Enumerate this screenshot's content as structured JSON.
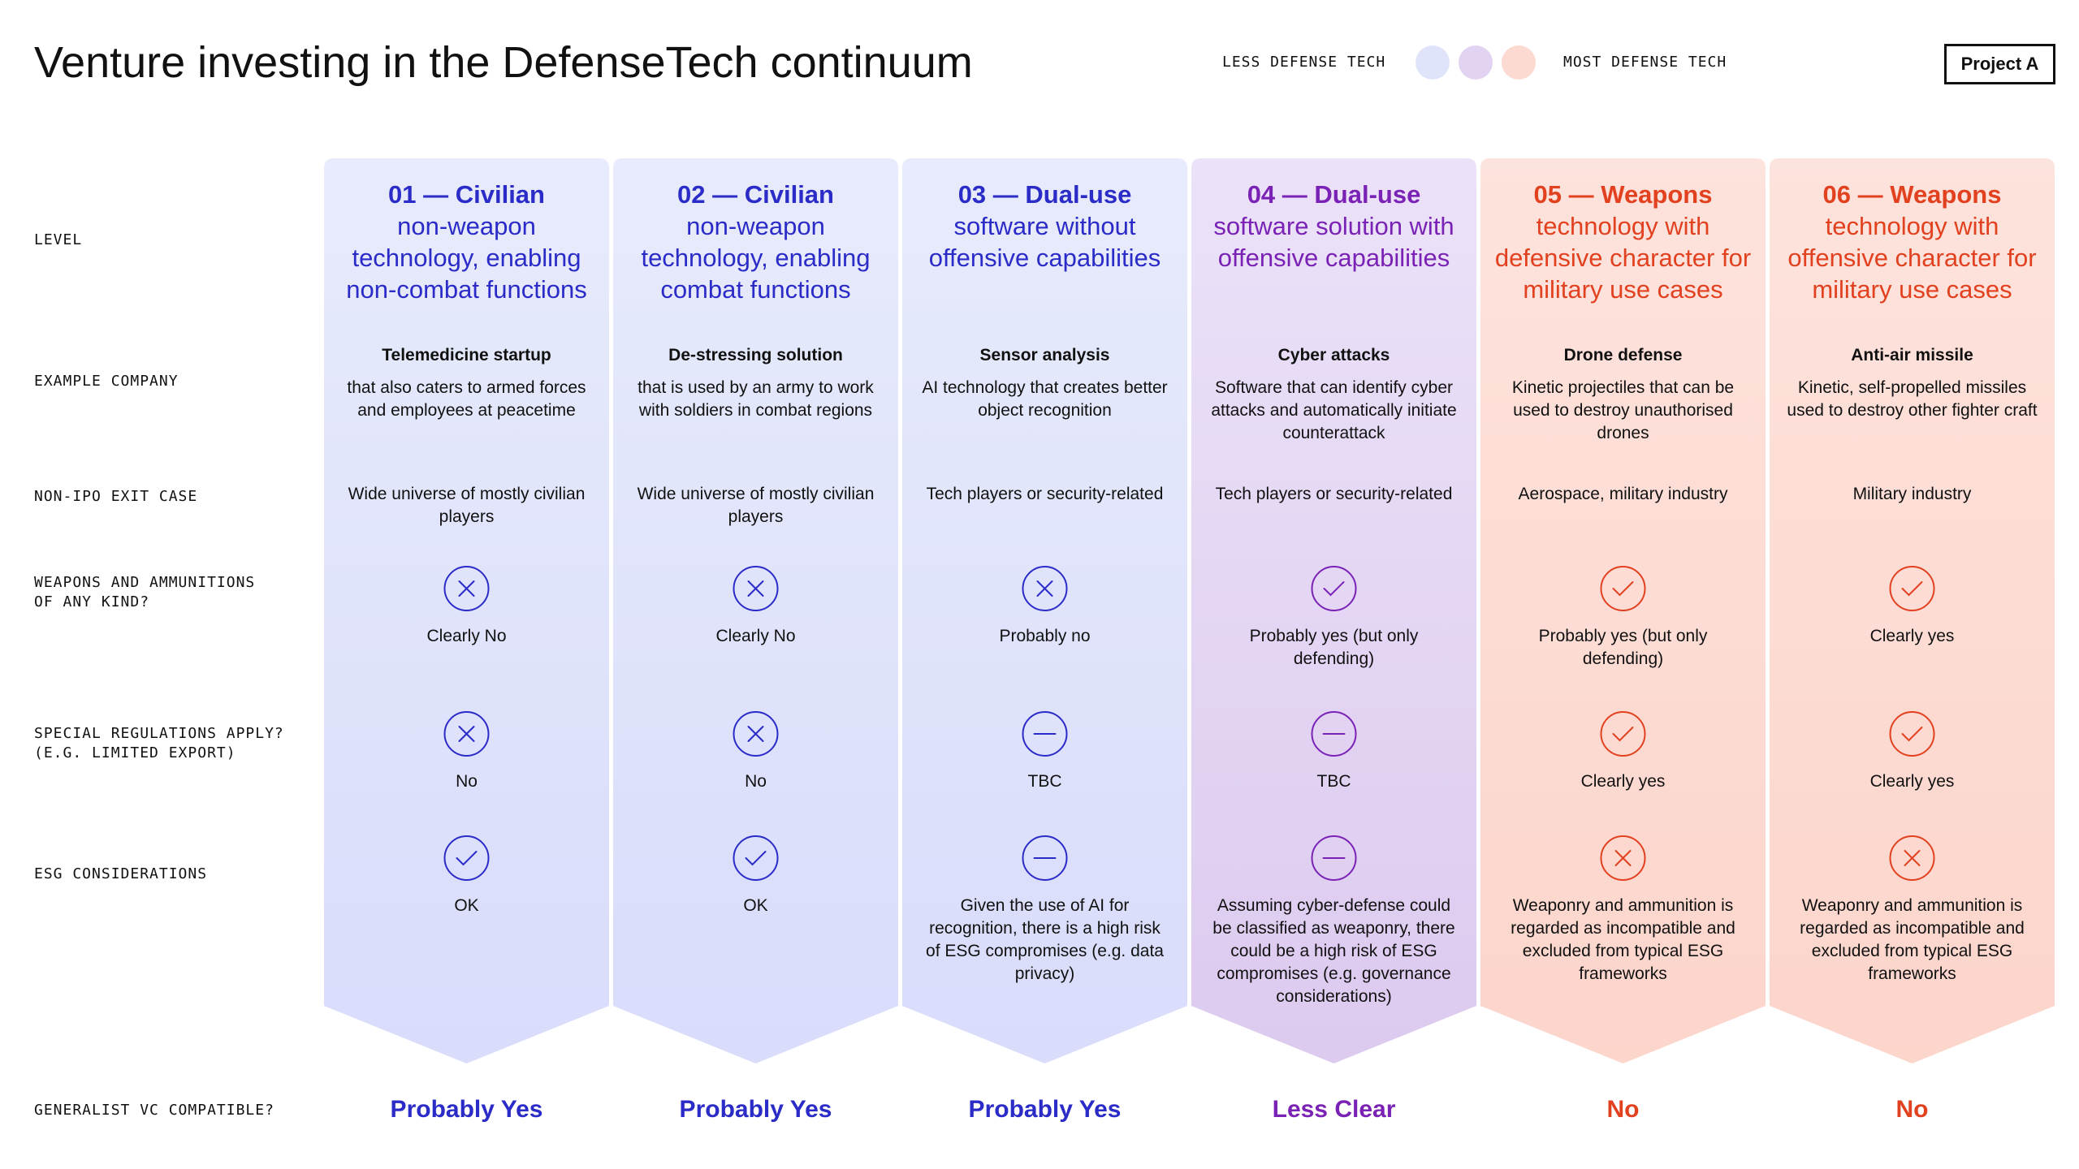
{
  "header": {
    "title": "Venture investing in the DefenseTech continuum",
    "legend": {
      "less": "LESS DEFENSE TECH",
      "most": "MOST DEFENSE TECH",
      "colors": [
        "#dfe4fb",
        "#e3d3f3",
        "#fcd9d1"
      ]
    },
    "badge": "Project A"
  },
  "row_labels": [
    "LEVEL",
    "EXAMPLE COMPANY",
    "NON-IPO EXIT CASE",
    "WEAPONS AND AMMUNITIONS OF ANY KIND?",
    "SPECIAL REGULATIONS APPLY? (E.G. LIMITED EXPORT)",
    "ESG CONSIDERATIONS",
    "GENERALIST VC COMPATIBLE?"
  ],
  "columns": [
    {
      "level": "01 — Civilian",
      "level_desc": "non-weapon technology, enabling non-combat functions",
      "color": "#2b2bc8",
      "background": [
        "#e7ebfb",
        "#d9dcfb"
      ],
      "example_title": "Telemedicine startup",
      "example_desc": "that also caters to armed forces and employees at peacetime",
      "exit": "Wide universe of mostly civilian players",
      "weapons": {
        "icon": "x",
        "text": "Clearly No"
      },
      "regulations": {
        "icon": "x",
        "text": "No"
      },
      "esg": {
        "icon": "check",
        "text": "OK"
      },
      "verdict": "Probably Yes"
    },
    {
      "level": "02 — Civilian",
      "level_desc": "non-weapon technology, enabling combat functions",
      "color": "#2b2bc8",
      "background": [
        "#e7ebfb",
        "#d9dcfb"
      ],
      "example_title": "De-stressing solution",
      "example_desc": "that is used by an army to work with soldiers in combat regions",
      "exit": "Wide universe of mostly civilian players",
      "weapons": {
        "icon": "x",
        "text": "Clearly No"
      },
      "regulations": {
        "icon": "x",
        "text": "No"
      },
      "esg": {
        "icon": "check",
        "text": "OK"
      },
      "verdict": "Probably Yes"
    },
    {
      "level": "03 — Dual-use",
      "level_desc": "software without offensive capabilities",
      "color": "#2b2bc8",
      "background": [
        "#e7ebfb",
        "#d9dcfb"
      ],
      "example_title": "Sensor analysis",
      "example_desc": "AI technology that creates better object recognition",
      "exit": "Tech players or security-related",
      "weapons": {
        "icon": "x",
        "text": "Probably no"
      },
      "regulations": {
        "icon": "minus",
        "text": "TBC"
      },
      "esg": {
        "icon": "minus",
        "text": "Given the use of AI for recognition, there is a high risk of ESG compromises (e.g. data privacy)"
      },
      "verdict": "Probably Yes"
    },
    {
      "level": "04 — Dual-use",
      "level_desc": "software solution with offensive capabilities",
      "color": "#7a22b5",
      "background": [
        "#ebe2f8",
        "#dccaef"
      ],
      "example_title": "Cyber attacks",
      "example_desc": "Software that can identify cyber attacks and automatically initiate counterattack",
      "exit": "Tech players or security-related",
      "weapons": {
        "icon": "check",
        "text": "Probably yes (but only defending)"
      },
      "regulations": {
        "icon": "minus",
        "text": "TBC"
      },
      "esg": {
        "icon": "minus",
        "text": "Assuming cyber-defense could be classified as weaponry, there could be a high risk of ESG compromises (e.g. governance considerations)"
      },
      "verdict": "Less Clear"
    },
    {
      "level": "05 — Weapons",
      "level_desc": "technology with defensive character for military use cases",
      "color": "#e2411f",
      "background": [
        "#fde3dd",
        "#fcd5cb"
      ],
      "example_title": "Drone defense",
      "example_desc": "Kinetic projectiles that can be used to destroy unauthorised drones",
      "exit": "Aerospace, military industry",
      "weapons": {
        "icon": "check",
        "text": "Probably yes (but only defending)"
      },
      "regulations": {
        "icon": "check",
        "text": "Clearly yes"
      },
      "esg": {
        "icon": "x",
        "text": "Weaponry and ammunition is regarded as incompatible and excluded from typical ESG frameworks"
      },
      "verdict": "No"
    },
    {
      "level": "06 — Weapons",
      "level_desc": "technology with offensive character for military use cases",
      "color": "#e2411f",
      "background": [
        "#fde3dd",
        "#fcd5cb"
      ],
      "example_title": "Anti-air missile",
      "example_desc": "Kinetic, self-propelled missiles used to destroy other fighter craft",
      "exit": "Military industry",
      "weapons": {
        "icon": "check",
        "text": "Clearly yes"
      },
      "regulations": {
        "icon": "check",
        "text": "Clearly yes"
      },
      "esg": {
        "icon": "x",
        "text": "Weaponry and ammunition is regarded as incompatible and excluded from typical ESG frameworks"
      },
      "verdict": "No"
    }
  ]
}
